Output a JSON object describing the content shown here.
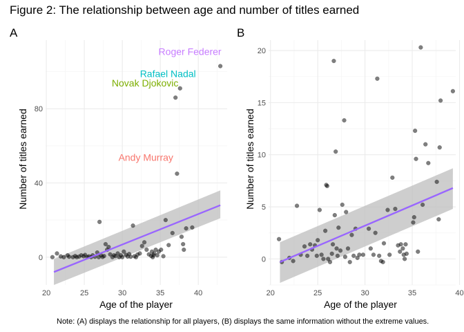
{
  "title": "Figure 2: The relationship between age and number of titles earned",
  "note": "Note: (A) displays the relationship for all players, (B) displays the same information without the extreme values.",
  "colors": {
    "points": "#000000",
    "fit_line": "#9966FF",
    "ribbon": "#BEBEBE",
    "grid_major": "#EBEBEB",
    "grid_minor": "#F5F5F5",
    "label_federer": "#C77CFF",
    "label_nadal": "#00BFC4",
    "label_djokovic": "#7CAE00",
    "label_murray": "#F8766D"
  },
  "chart_data": [
    {
      "panel": "A",
      "type": "scatter",
      "xlabel": "Age of the player",
      "ylabel": "Number of titles earned",
      "xlim": [
        19.9,
        43.8
      ],
      "ylim": [
        -15,
        117
      ],
      "x_ticks": [
        20,
        25,
        30,
        35,
        40
      ],
      "y_ticks": [
        0,
        40,
        80
      ],
      "grid": true,
      "fit": {
        "type": "linear",
        "x": [
          21.0,
          42.9
        ],
        "y": [
          -8,
          28
        ],
        "ci_lower": [
          -15,
          21
        ],
        "ci_upper": [
          -1,
          36
        ]
      },
      "points": [
        [
          20.8,
          0
        ],
        [
          21.4,
          2
        ],
        [
          21.9,
          0.4
        ],
        [
          22.3,
          0
        ],
        [
          22.8,
          1
        ],
        [
          23.0,
          0.2
        ],
        [
          23.5,
          0
        ],
        [
          23.8,
          0.6
        ],
        [
          24.0,
          0
        ],
        [
          24.3,
          0.3
        ],
        [
          24.6,
          1
        ],
        [
          24.9,
          0.5
        ],
        [
          25.1,
          1.2
        ],
        [
          25.4,
          0
        ],
        [
          25.6,
          0.4
        ],
        [
          25.9,
          0
        ],
        [
          26.1,
          1
        ],
        [
          26.4,
          0.2
        ],
        [
          26.7,
          2.5
        ],
        [
          26.9,
          0
        ],
        [
          27.0,
          19
        ],
        [
          27.2,
          1
        ],
        [
          27.4,
          0.1
        ],
        [
          27.6,
          0.6
        ],
        [
          27.8,
          7
        ],
        [
          28.0,
          4
        ],
        [
          28.2,
          5.5
        ],
        [
          28.4,
          1.5
        ],
        [
          28.7,
          0
        ],
        [
          28.9,
          1
        ],
        [
          29.1,
          0.6
        ],
        [
          29.4,
          2
        ],
        [
          29.6,
          0
        ],
        [
          29.8,
          1
        ],
        [
          30.0,
          0
        ],
        [
          30.2,
          3
        ],
        [
          30.5,
          1.2
        ],
        [
          30.7,
          0.3
        ],
        [
          30.9,
          1.7
        ],
        [
          31.1,
          0.2
        ],
        [
          31.4,
          17
        ],
        [
          31.6,
          0.5
        ],
        [
          31.8,
          0
        ],
        [
          32.0,
          1.4
        ],
        [
          32.3,
          2
        ],
        [
          32.6,
          6
        ],
        [
          32.9,
          8
        ],
        [
          33.2,
          4
        ],
        [
          33.5,
          1.5
        ],
        [
          33.8,
          0.7
        ],
        [
          33.9,
          3
        ],
        [
          34.0,
          0
        ],
        [
          34.1,
          1
        ],
        [
          34.2,
          2
        ],
        [
          34.4,
          4
        ],
        [
          34.6,
          1
        ],
        [
          34.8,
          3
        ],
        [
          35.1,
          4
        ],
        [
          35.4,
          0.5
        ],
        [
          35.7,
          20
        ],
        [
          36.1,
          6.5
        ],
        [
          36.6,
          13
        ],
        [
          37.0,
          86
        ],
        [
          37.2,
          45
        ],
        [
          37.6,
          91
        ],
        [
          37.8,
          11
        ],
        [
          38.0,
          7
        ],
        [
          38.1,
          4
        ],
        [
          38.4,
          15.5
        ],
        [
          39.2,
          16
        ],
        [
          42.9,
          103
        ]
      ],
      "labels": [
        {
          "text": "Roger Federer",
          "x": 38.9,
          "y": 109,
          "color_key": "label_federer"
        },
        {
          "text": "Rafael Nadal",
          "x": 36.0,
          "y": 97,
          "color_key": "label_nadal"
        },
        {
          "text": "Novak Djokovic",
          "x": 33.0,
          "y": 92,
          "color_key": "label_djokovic"
        },
        {
          "text": "Andy Murray",
          "x": 33.1,
          "y": 52,
          "color_key": "label_murray"
        }
      ]
    },
    {
      "panel": "B",
      "type": "scatter",
      "xlabel": "Age of the player",
      "ylabel": "Number of titles earned",
      "xlim": [
        19.8,
        39.6
      ],
      "ylim": [
        -2.5,
        21
      ],
      "x_ticks": [
        20,
        25,
        30,
        35,
        40
      ],
      "y_ticks": [
        0,
        5,
        10,
        15,
        20
      ],
      "grid": true,
      "fit": {
        "type": "linear",
        "x": [
          21.0,
          39.3
        ],
        "y": [
          -0.3,
          6.8
        ],
        "ci_lower": [
          -2.3,
          4.8
        ],
        "ci_upper": [
          1.6,
          8.7
        ]
      },
      "points": [
        [
          20.9,
          1.9
        ],
        [
          21.2,
          -0.3
        ],
        [
          22.0,
          0.1
        ],
        [
          22.4,
          -0.2
        ],
        [
          22.8,
          5.1
        ],
        [
          23.2,
          0.4
        ],
        [
          23.6,
          1.2
        ],
        [
          23.9,
          0.3
        ],
        [
          24.2,
          1.4
        ],
        [
          24.4,
          0.9
        ],
        [
          24.7,
          1.3
        ],
        [
          24.9,
          0.3
        ],
        [
          25.0,
          1.8
        ],
        [
          25.2,
          4.7
        ],
        [
          25.4,
          0.4
        ],
        [
          25.6,
          0
        ],
        [
          25.8,
          2.7
        ],
        [
          25.9,
          7.1
        ],
        [
          26.0,
          7.0
        ],
        [
          26.1,
          0
        ],
        [
          26.3,
          -0.3
        ],
        [
          26.5,
          0.5
        ],
        [
          26.6,
          1.4
        ],
        [
          26.7,
          19.0
        ],
        [
          26.8,
          4.2
        ],
        [
          26.9,
          10.3
        ],
        [
          27.0,
          1.0
        ],
        [
          27.1,
          0.3
        ],
        [
          27.2,
          3.0
        ],
        [
          27.4,
          0.8
        ],
        [
          27.6,
          5.2
        ],
        [
          27.8,
          13.3
        ],
        [
          27.9,
          0.2
        ],
        [
          28.0,
          4.5
        ],
        [
          28.2,
          1.0
        ],
        [
          28.4,
          -0.3
        ],
        [
          28.6,
          2.3
        ],
        [
          28.8,
          0.3
        ],
        [
          29.0,
          2.9
        ],
        [
          29.2,
          0.1
        ],
        [
          29.4,
          0.4
        ],
        [
          29.8,
          0.4
        ],
        [
          30.4,
          2.9
        ],
        [
          30.6,
          1.0
        ],
        [
          30.9,
          0.4
        ],
        [
          31.1,
          2.5
        ],
        [
          31.3,
          17.3
        ],
        [
          31.5,
          0.3
        ],
        [
          31.7,
          -0.2
        ],
        [
          31.9,
          -0.3
        ],
        [
          32.0,
          1.5
        ],
        [
          32.4,
          4.7
        ],
        [
          32.6,
          0.4
        ],
        [
          32.9,
          7.8
        ],
        [
          33.2,
          4.8
        ],
        [
          33.5,
          1.3
        ],
        [
          33.7,
          0.7
        ],
        [
          33.8,
          1.4
        ],
        [
          34.0,
          1.0
        ],
        [
          34.1,
          0.4
        ],
        [
          34.2,
          0
        ],
        [
          34.3,
          1.4
        ],
        [
          34.4,
          0.5
        ],
        [
          35.1,
          3.5
        ],
        [
          35.2,
          4.0
        ],
        [
          35.3,
          12.3
        ],
        [
          35.4,
          9.6
        ],
        [
          35.6,
          0.7
        ],
        [
          35.9,
          20.3
        ],
        [
          36.1,
          5.2
        ],
        [
          36.4,
          11.0
        ],
        [
          36.7,
          9.2
        ],
        [
          37.6,
          7.4
        ],
        [
          37.8,
          3.8
        ],
        [
          37.9,
          10.7
        ],
        [
          38.0,
          15.2
        ],
        [
          39.3,
          16.1
        ]
      ]
    }
  ],
  "panels": {
    "A": {
      "tag": "A",
      "ylabel": "Number of titles earned",
      "xlabel": "Age of the player"
    },
    "B": {
      "tag": "B",
      "ylabel": "Number of titles earned",
      "xlabel": "Age of the player"
    }
  }
}
